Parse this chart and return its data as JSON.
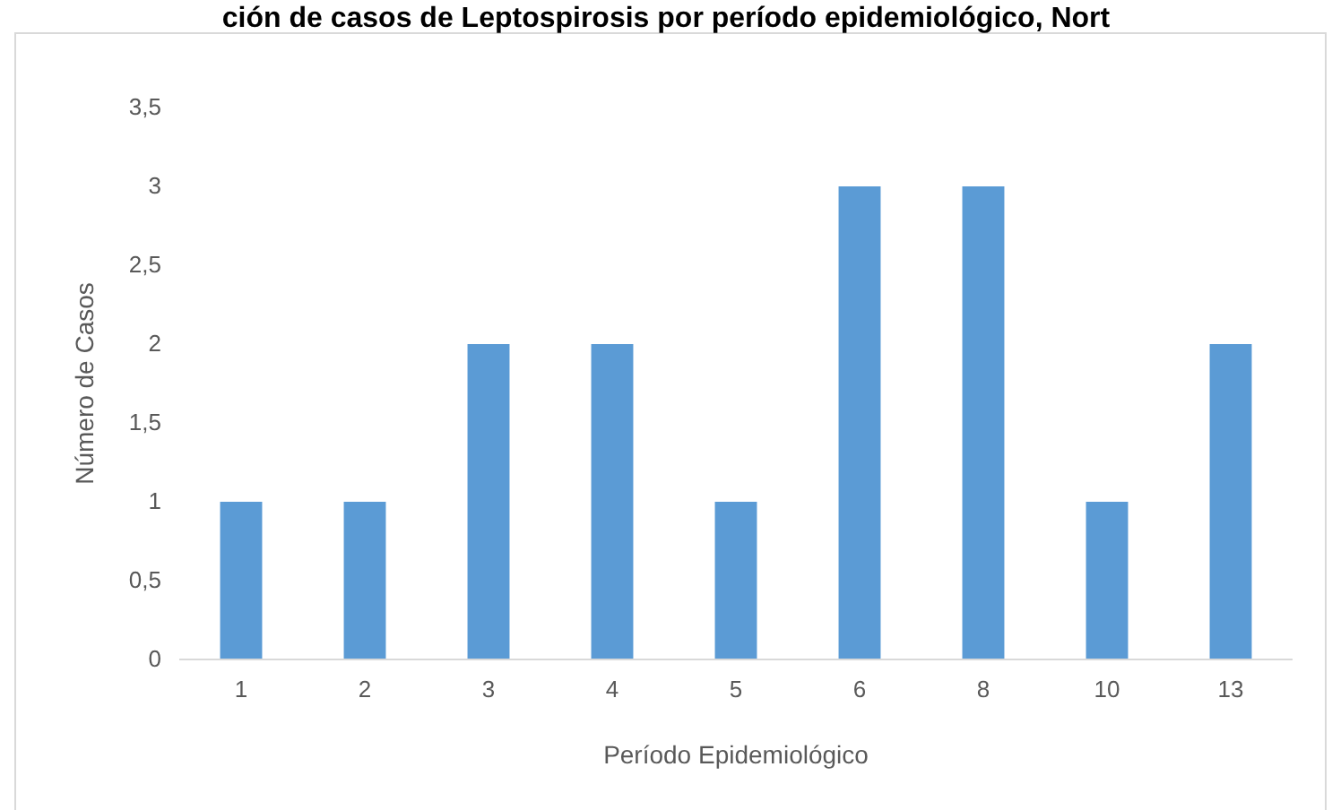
{
  "chart_data": {
    "type": "bar",
    "title": "ción de casos de Leptospirosis por período epidemiológico, Nort",
    "xlabel": "Período Epidemiológico",
    "ylabel": "Número de Casos",
    "categories": [
      "1",
      "2",
      "3",
      "4",
      "5",
      "6",
      "8",
      "10",
      "13"
    ],
    "values": [
      1,
      1,
      2,
      2,
      1,
      3,
      3,
      1,
      2
    ],
    "color": "#5b9bd5",
    "ylim": [
      0,
      3.5
    ],
    "yticks": [
      0,
      {
        "value": 0.5,
        "label": "0,5"
      },
      1,
      {
        "value": 1.5,
        "label": "1,5"
      },
      2,
      {
        "value": 2.5,
        "label": "2,5"
      },
      3,
      {
        "value": 3.5,
        "label": "3,5"
      }
    ],
    "grid": false
  }
}
